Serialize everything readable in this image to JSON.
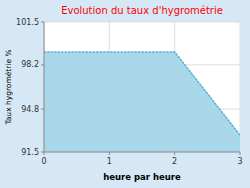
{
  "chart_data": {
    "type": "area",
    "title": "Evolution du taux d'hygrométrie",
    "x_label": "heure par heure",
    "y_label": "Taux hygrométrie %",
    "x": [
      0,
      2,
      3
    ],
    "series": [
      {
        "type": "area",
        "color": "#a8d8ea",
        "values": [
          99.2,
          99.2,
          92.8
        ]
      },
      {
        "type": "line",
        "color": "#5ab4d6",
        "line_style": "dotted",
        "values": [
          99.2,
          99.2,
          92.8
        ]
      }
    ],
    "xlim": [
      0,
      3
    ],
    "ylim": [
      91.5,
      101.5
    ],
    "xticks": [
      0,
      1,
      2,
      3
    ],
    "yticks": [
      91.5,
      94.8,
      98.2,
      101.5
    ],
    "grid": true
  }
}
